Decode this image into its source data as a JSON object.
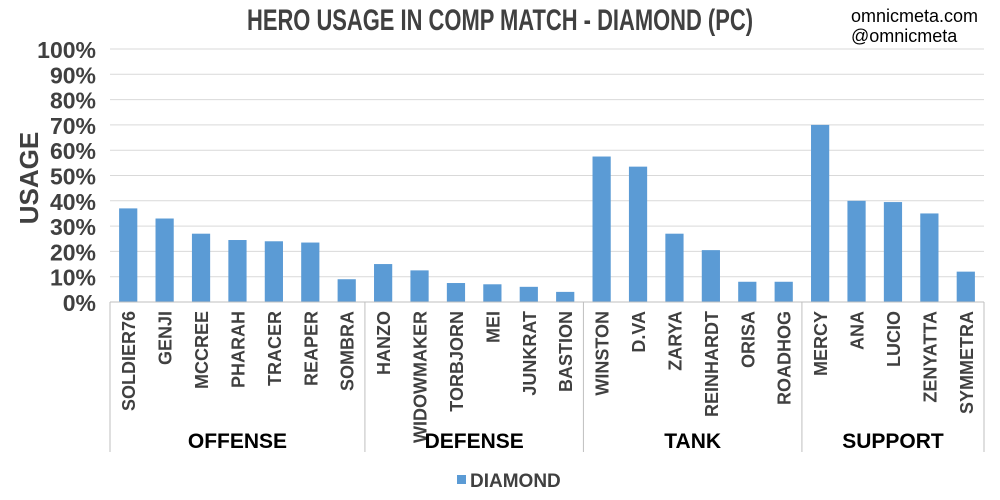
{
  "chart_data": {
    "type": "bar",
    "title": "HERO USAGE IN COMP MATCH - DIAMOND (PC)",
    "ylabel": "USAGE",
    "xlabel": "",
    "ylim": [
      0,
      1
    ],
    "yticks": [
      "0%",
      "10%",
      "20%",
      "30%",
      "40%",
      "50%",
      "60%",
      "70%",
      "80%",
      "90%",
      "100%"
    ],
    "grid": true,
    "legend_position": "bottom",
    "series": [
      {
        "name": "DIAMOND",
        "color": "#5b9bd5",
        "values": [
          0.37,
          0.33,
          0.27,
          0.245,
          0.24,
          0.235,
          0.09,
          0.15,
          0.125,
          0.075,
          0.07,
          0.06,
          0.04,
          0.575,
          0.535,
          0.27,
          0.205,
          0.08,
          0.08,
          0.7,
          0.4,
          0.395,
          0.35,
          0.12
        ]
      }
    ],
    "categories": [
      "SOLDIER76",
      "GENJI",
      "MCCREE",
      "PHARAH",
      "TRACER",
      "REAPER",
      "SOMBRA",
      "HANZO",
      "WIDOWMAKER",
      "TORBJORN",
      "MEI",
      "JUNKRAT",
      "BASTION",
      "WINSTON",
      "D.VA",
      "ZARYA",
      "REINHARDT",
      "ORISA",
      "ROADHOG",
      "MERCY",
      "ANA",
      "LUCIO",
      "ZENYATTA",
      "SYMMETRA"
    ],
    "groups": [
      {
        "label": "OFFENSE",
        "count": 7
      },
      {
        "label": "DEFENSE",
        "count": 6
      },
      {
        "label": "TANK",
        "count": 6
      },
      {
        "label": "SUPPORT",
        "count": 5
      }
    ]
  },
  "watermark": {
    "site": "omnicmeta.com",
    "handle": "@omnicmeta"
  }
}
